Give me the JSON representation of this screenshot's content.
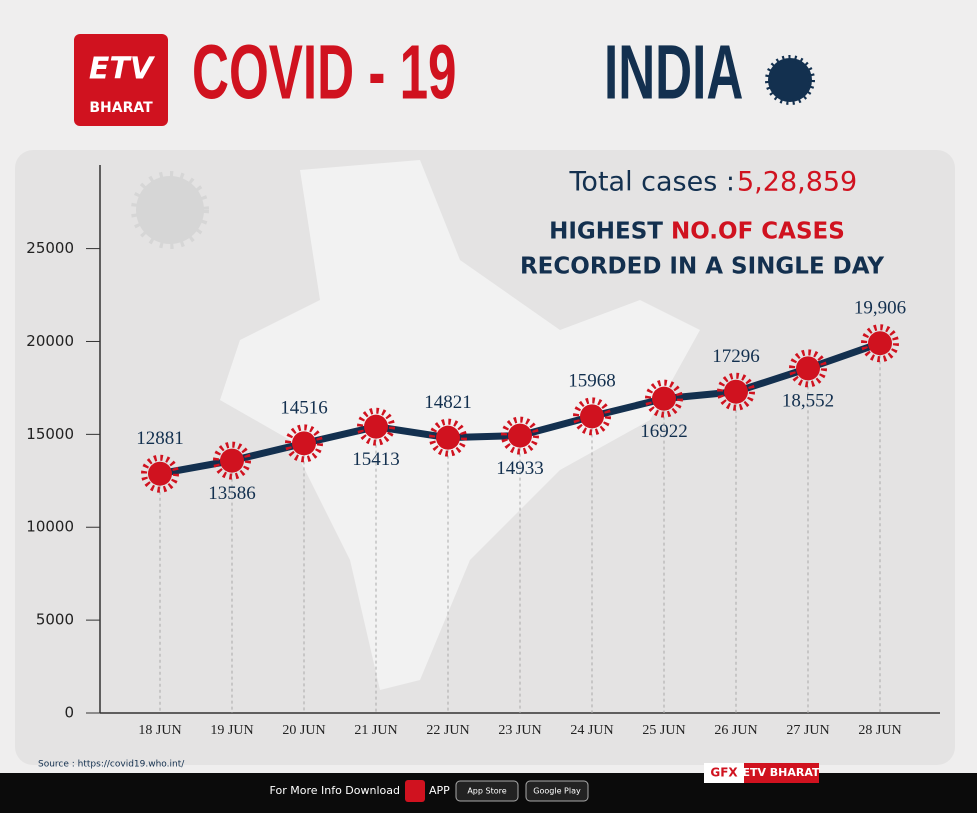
{
  "header": {
    "logo_top": "ETV",
    "logo_bottom": "BHARAT",
    "title_red": "COVID - 19",
    "title_blue": "INDIA"
  },
  "chart_data": {
    "type": "line",
    "total_label": "Total cases : ",
    "total_value": "5,28,859",
    "subtitle_a": "HIGHEST ",
    "subtitle_b": "NO.OF CASES",
    "subtitle_c": "RECORDED IN A SINGLE DAY",
    "categories": [
      "18 JUN",
      "19 JUN",
      "20 JUN",
      "21 JUN",
      "22 JUN",
      "23 JUN",
      "24 JUN",
      "25 JUN",
      "26 JUN",
      "27 JUN",
      "28 JUN"
    ],
    "values": [
      12881,
      13586,
      14516,
      15413,
      14821,
      14933,
      15968,
      16922,
      17296,
      18552,
      19906
    ],
    "value_labels": [
      "12881",
      "13586",
      "14516",
      "15413",
      "14821",
      "14933",
      "15968",
      "16922",
      "17296",
      "18,552",
      "19,906"
    ],
    "line_color": "#13304f",
    "marker_color": "#d0121f",
    "ylim": [
      0,
      29500
    ],
    "yticks": [
      0,
      5000,
      10000,
      15000,
      20000,
      25000
    ]
  },
  "source": "Source : https://covid19.who.int/",
  "footer": {
    "info": "For More Info Download",
    "app": "APP",
    "app_store": "App Store",
    "google_play": "Google Play",
    "gfx": "GFX",
    "brand": "ETV BHARAT"
  }
}
